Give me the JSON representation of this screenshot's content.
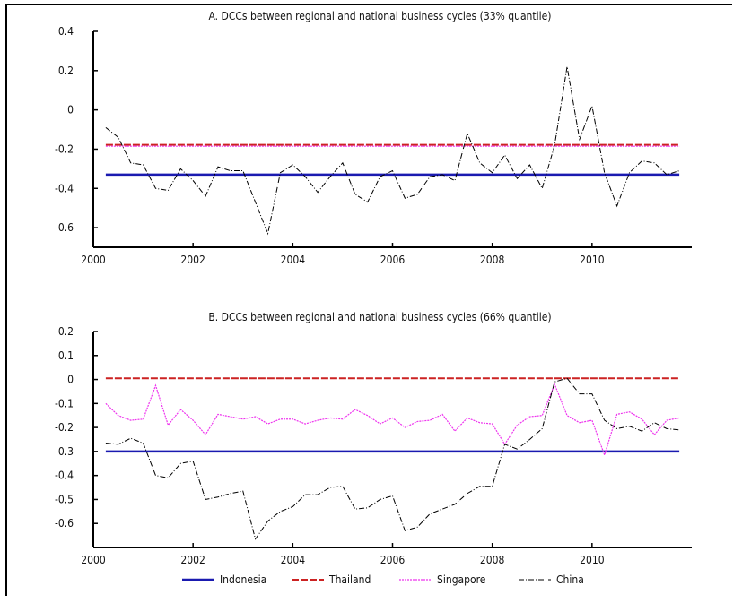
{
  "chart_data": [
    {
      "type": "line",
      "title": "A. DCCs between regional and national business cycles (33% quantile)",
      "xlim": [
        2000,
        2012
      ],
      "ylim": [
        -0.7,
        0.4
      ],
      "xticks": [
        "2000",
        "2002",
        "2004",
        "2006",
        "2008",
        "2010"
      ],
      "yticks": [
        "0.4",
        "0.2",
        "0",
        "-0.2",
        "-0.4",
        "-0.6"
      ],
      "ytick_values": [
        0.4,
        0.2,
        0,
        -0.2,
        -0.4,
        -0.6
      ],
      "x_start": 2000.25,
      "x_step": 0.25,
      "series": [
        {
          "name": "Indonesia",
          "color": "#1a1ab0",
          "style": "solid",
          "constant": -0.33
        },
        {
          "name": "Thailand",
          "color": "#cc2222",
          "style": "dashed",
          "constant": -0.178
        },
        {
          "name": "Singapore",
          "color": "#ee33ee",
          "style": "dotted",
          "constant": -0.185
        },
        {
          "name": "China",
          "color": "#000000",
          "style": "dashdot",
          "values": [
            -0.09,
            -0.14,
            -0.27,
            -0.28,
            -0.4,
            -0.41,
            -0.3,
            -0.36,
            -0.44,
            -0.29,
            -0.31,
            -0.31,
            -0.47,
            -0.63,
            -0.32,
            -0.28,
            -0.34,
            -0.42,
            -0.34,
            -0.27,
            -0.43,
            -0.47,
            -0.34,
            -0.31,
            -0.45,
            -0.43,
            -0.34,
            -0.33,
            -0.36,
            -0.12,
            -0.27,
            -0.32,
            -0.23,
            -0.35,
            -0.28,
            -0.4,
            -0.18,
            0.22,
            -0.15,
            0.02,
            -0.32,
            -0.49,
            -0.32,
            -0.26,
            -0.27,
            -0.33,
            -0.31
          ]
        }
      ]
    },
    {
      "type": "line",
      "title": "B. DCCs between regional and national business cycles (66% quantile)",
      "xlim": [
        2000,
        2012
      ],
      "ylim": [
        -0.7,
        0.2
      ],
      "xticks": [
        "2000",
        "2002",
        "2004",
        "2006",
        "2008",
        "2010"
      ],
      "yticks": [
        "0.2",
        "0.1",
        "0",
        "-0.1",
        "-0.2",
        "-0.3",
        "-0.4",
        "-0.5",
        "-0.6"
      ],
      "ytick_values": [
        0.2,
        0.1,
        0,
        -0.1,
        -0.2,
        -0.3,
        -0.4,
        -0.5,
        -0.6
      ],
      "x_start": 2000.25,
      "x_step": 0.25,
      "series": [
        {
          "name": "Indonesia",
          "color": "#1a1ab0",
          "style": "solid",
          "constant": -0.3
        },
        {
          "name": "Thailand",
          "color": "#cc2222",
          "style": "dashed",
          "constant": 0.005
        },
        {
          "name": "Singapore",
          "color": "#ee33ee",
          "style": "dotted",
          "values": [
            -0.1,
            -0.15,
            -0.17,
            -0.165,
            -0.025,
            -0.19,
            -0.125,
            -0.17,
            -0.23,
            -0.145,
            -0.155,
            -0.165,
            -0.155,
            -0.185,
            -0.165,
            -0.165,
            -0.185,
            -0.17,
            -0.16,
            -0.165,
            -0.125,
            -0.15,
            -0.185,
            -0.16,
            -0.2,
            -0.175,
            -0.17,
            -0.145,
            -0.215,
            -0.16,
            -0.18,
            -0.185,
            -0.27,
            -0.19,
            -0.155,
            -0.15,
            -0.02,
            -0.15,
            -0.18,
            -0.17,
            -0.315,
            -0.145,
            -0.135,
            -0.165,
            -0.23,
            -0.17,
            -0.16
          ]
        },
        {
          "name": "China",
          "color": "#000000",
          "style": "dashdot",
          "values": [
            -0.265,
            -0.27,
            -0.245,
            -0.265,
            -0.4,
            -0.41,
            -0.35,
            -0.34,
            -0.5,
            -0.49,
            -0.475,
            -0.465,
            -0.665,
            -0.59,
            -0.55,
            -0.53,
            -0.48,
            -0.48,
            -0.45,
            -0.445,
            -0.54,
            -0.535,
            -0.5,
            -0.485,
            -0.63,
            -0.615,
            -0.56,
            -0.54,
            -0.52,
            -0.475,
            -0.445,
            -0.445,
            -0.27,
            -0.29,
            -0.25,
            -0.205,
            -0.01,
            0.005,
            -0.06,
            -0.06,
            -0.17,
            -0.205,
            -0.195,
            -0.215,
            -0.18,
            -0.205,
            -0.21
          ]
        }
      ]
    }
  ],
  "legend": [
    {
      "label": "Indonesia",
      "color": "#1a1ab0",
      "style": "solid"
    },
    {
      "label": "Thailand",
      "color": "#cc2222",
      "style": "dashed"
    },
    {
      "label": "Singapore",
      "color": "#ee33ee",
      "style": "dotted"
    },
    {
      "label": "China",
      "color": "#000000",
      "style": "dashdot"
    }
  ]
}
